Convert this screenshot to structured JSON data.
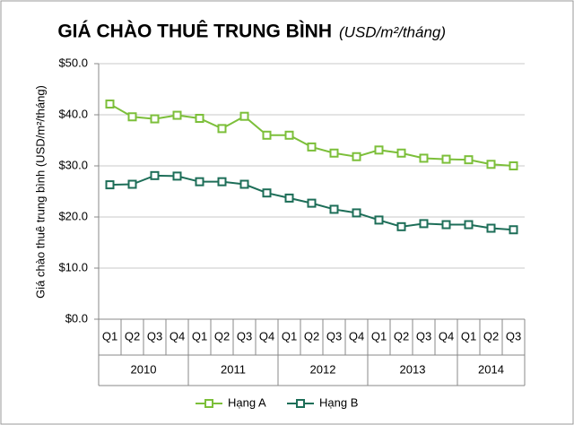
{
  "chart_data": {
    "type": "line",
    "title": "GIÁ CHÀO THUÊ TRUNG BÌNH",
    "subtitle": "(USD/m²/tháng)",
    "y_label": "Giá chào thuê trung bình (USD/m²/tháng)",
    "categories": [
      "Q1",
      "Q2",
      "Q3",
      "Q4",
      "Q1",
      "Q2",
      "Q3",
      "Q4",
      "Q1",
      "Q2",
      "Q3",
      "Q4",
      "Q1",
      "Q2",
      "Q3",
      "Q4",
      "Q1",
      "Q2",
      "Q3"
    ],
    "category_groups": [
      {
        "label": "2010",
        "size": 4
      },
      {
        "label": "2011",
        "size": 4
      },
      {
        "label": "2012",
        "size": 4
      },
      {
        "label": "2013",
        "size": 4
      },
      {
        "label": "2014",
        "size": 3
      }
    ],
    "series": [
      {
        "name": "Hạng A",
        "color": "#7cbf3a",
        "values": [
          42.1,
          39.6,
          39.2,
          39.9,
          39.3,
          37.3,
          39.7,
          36.0,
          36.0,
          33.7,
          32.5,
          31.8,
          33.1,
          32.5,
          31.5,
          31.3,
          31.2,
          30.3,
          30.0
        ]
      },
      {
        "name": "Hạng B",
        "color": "#1d6e58",
        "values": [
          26.3,
          26.4,
          28.1,
          28.0,
          26.9,
          26.9,
          26.4,
          24.7,
          23.7,
          22.7,
          21.5,
          20.8,
          19.4,
          18.1,
          18.7,
          18.5,
          18.5,
          17.8,
          17.5
        ]
      }
    ],
    "ylim": [
      0,
      50
    ],
    "yticks": [
      {
        "value": 0,
        "label": "$0.0"
      },
      {
        "value": 10,
        "label": "$10.0"
      },
      {
        "value": 20,
        "label": "$20.0"
      },
      {
        "value": 30,
        "label": "$30.0"
      },
      {
        "value": 40,
        "label": "$40.0"
      },
      {
        "value": 50,
        "label": "$50.0"
      }
    ],
    "grid": true,
    "legend": "bottom"
  }
}
